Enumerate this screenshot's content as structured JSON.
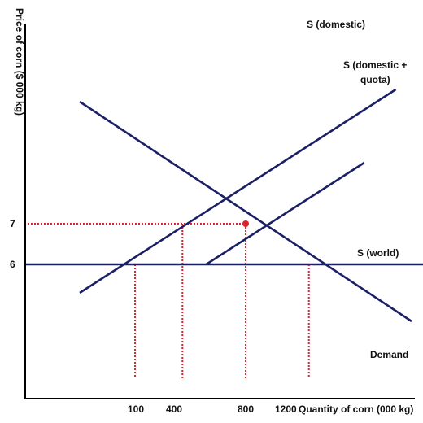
{
  "chart_data": {
    "type": "line",
    "title": "",
    "xlabel": "Quantity of corn (000 kg)",
    "ylabel": "Price of corn ($ 000 kg)",
    "x_ticks": [
      {
        "value": 100,
        "label": "100"
      },
      {
        "value": 400,
        "label": "400"
      },
      {
        "value": 800,
        "label": "800"
      },
      {
        "value": 1200,
        "label": "1200"
      }
    ],
    "y_ticks": [
      {
        "value": 7,
        "label": "7"
      },
      {
        "value": 6,
        "label": "6"
      }
    ],
    "series": [
      {
        "key": "s_domestic",
        "name": "S (domestic)",
        "points": [
          [
            -250,
            5.3
          ],
          [
            1750,
            10.3
          ]
        ]
      },
      {
        "key": "s_quota",
        "name": "S (domestic + quota)",
        "points": [
          [
            550,
            6
          ],
          [
            1550,
            8.5
          ]
        ]
      },
      {
        "key": "demand",
        "name": "Demand",
        "points": [
          [
            -250,
            10
          ],
          [
            1850,
            4.6
          ]
        ]
      },
      {
        "key": "s_world",
        "name": "S (world)",
        "points": [
          [
            -600,
            6
          ],
          [
            2200,
            6
          ]
        ]
      }
    ],
    "equilibrium_point": {
      "x": 800,
      "y": 7
    },
    "guides": [
      {
        "from": [
          -600,
          7
        ],
        "to": [
          800,
          7
        ]
      },
      {
        "from": [
          100,
          6
        ],
        "to": [
          100,
          3.2
        ]
      },
      {
        "from": [
          400,
          7
        ],
        "to": [
          400,
          3.2
        ]
      },
      {
        "from": [
          800,
          7
        ],
        "to": [
          800,
          3.2
        ]
      },
      {
        "from": [
          1200,
          6
        ],
        "to": [
          1200,
          3.2
        ]
      }
    ],
    "colors": {
      "line": "#1b1f66",
      "guide": "#e0222a",
      "point": "#e0222a",
      "axis": "#000000"
    }
  }
}
